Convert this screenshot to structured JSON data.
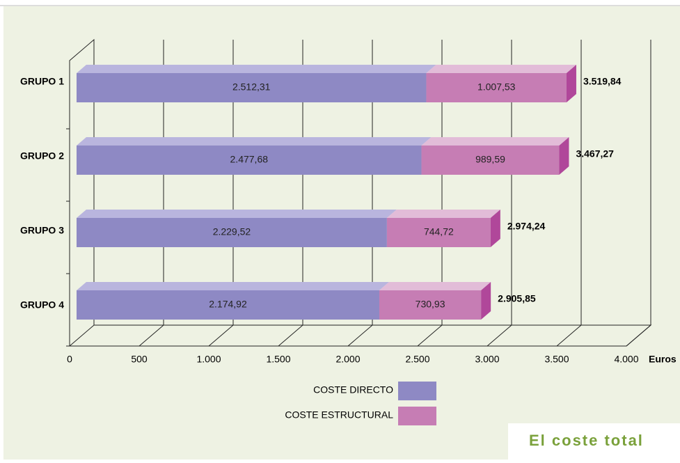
{
  "chart_data": {
    "type": "bar3d_stacked_horizontal",
    "categories": [
      "GRUPO 1",
      "GRUPO 2",
      "GRUPO 3",
      "GRUPO 4"
    ],
    "series": [
      {
        "name": "COSTE DIRECTO",
        "color": "#8e89c4",
        "values": [
          2512.31,
          2477.68,
          2229.52,
          2174.92
        ],
        "value_labels": [
          "2.512,31",
          "2.477,68",
          "2.229,52",
          "2.174,92"
        ]
      },
      {
        "name": "COSTE ESTRUCTURAL",
        "color": "#c67db4",
        "values": [
          1007.53,
          989.59,
          744.72,
          730.93
        ],
        "value_labels": [
          "1.007,53",
          "989,59",
          "744,72",
          "730,93"
        ]
      }
    ],
    "totals": {
      "values": [
        3519.84,
        3467.27,
        2974.24,
        2905.85
      ],
      "value_labels": [
        "3.519,84",
        "3.467,27",
        "2.974,24",
        "2.905,85"
      ]
    },
    "xlim": [
      0,
      4000
    ],
    "xticks": [
      0,
      500,
      {
        "value": 1000,
        "label": "1.000"
      },
      {
        "value": 1500,
        "label": "1.500"
      },
      {
        "value": 2000,
        "label": "2.000"
      },
      {
        "value": 2500,
        "label": "2.500"
      },
      {
        "value": 3000,
        "label": "3.000"
      },
      {
        "value": 3500,
        "label": "3.500"
      },
      {
        "value": 4000,
        "label": "4.000"
      }
    ],
    "xlabel": "Euros",
    "grid": true,
    "annotation": "El coste total"
  }
}
